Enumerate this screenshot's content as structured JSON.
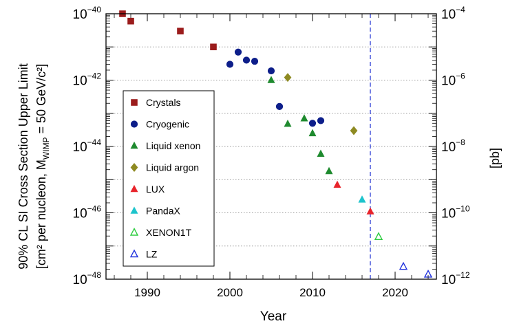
{
  "chart_data": {
    "type": "scatter",
    "xlabel": "Year",
    "ylabel_line1": "90% CL SI Cross Section Upper Limit",
    "ylabel_line2": "[cm² per nucleon, M",
    "ylabel_sub": "WIMP",
    "ylabel_line2_end": " = 50 GeV/c²]",
    "y2label": "[pb]",
    "xlim": [
      1985,
      2025
    ],
    "ylim": [
      1e-48,
      1e-40
    ],
    "y2lim": [
      1e-12,
      0.0001
    ],
    "log_y": true,
    "x_ticks": [
      1990,
      2000,
      2010,
      2020
    ],
    "y_ticks_left": [
      {
        "value": 1e-40,
        "mant": "10",
        "exp": "−40"
      },
      {
        "value": 1e-42,
        "mant": "10",
        "exp": "−42"
      },
      {
        "value": 1e-44,
        "mant": "10",
        "exp": "−44"
      },
      {
        "value": 1e-46,
        "mant": "10",
        "exp": "−46"
      },
      {
        "value": 1e-48,
        "mant": "10",
        "exp": "−48"
      }
    ],
    "y_ticks_right": [
      {
        "value": 1e-40,
        "mant": "10",
        "exp": "−4"
      },
      {
        "value": 1e-42,
        "mant": "10",
        "exp": "−6"
      },
      {
        "value": 1e-44,
        "mant": "10",
        "exp": "−8"
      },
      {
        "value": 1e-46,
        "mant": "10",
        "exp": "−10"
      },
      {
        "value": 1e-48,
        "mant": "10",
        "exp": "−12"
      }
    ],
    "vline_x": 2017,
    "grid": "horizontal dotted at each decade",
    "legend_position": "left-center",
    "series": [
      {
        "name": "Crystals",
        "marker": "square",
        "filled": true,
        "color": "#9b1c1c",
        "points": [
          [
            1987,
            1e-40
          ],
          [
            1988,
            6e-41
          ],
          [
            1994,
            3e-41
          ],
          [
            1998,
            1e-41
          ]
        ]
      },
      {
        "name": "Cryogenic",
        "marker": "circle",
        "filled": true,
        "color": "#0d1e8a",
        "points": [
          [
            2000,
            3e-42
          ],
          [
            2001,
            7e-42
          ],
          [
            2002,
            4e-42
          ],
          [
            2003,
            3.7e-42
          ],
          [
            2005,
            1.9e-42
          ],
          [
            2006,
            1.6e-43
          ],
          [
            2010,
            5e-44
          ],
          [
            2011,
            6e-44
          ]
        ]
      },
      {
        "name": "Liquid xenon",
        "marker": "triangle",
        "filled": true,
        "color": "#1e8a2e",
        "points": [
          [
            2005,
            1e-42
          ],
          [
            2007,
            4.8e-44
          ],
          [
            2009,
            7e-44
          ],
          [
            2010,
            2.5e-44
          ],
          [
            2011,
            6e-45
          ],
          [
            2012,
            1.8e-45
          ]
        ]
      },
      {
        "name": "Liquid argon",
        "marker": "diamond",
        "filled": true,
        "color": "#8e8a22",
        "points": [
          [
            2007,
            1.2e-42
          ],
          [
            2015,
            3e-44
          ]
        ]
      },
      {
        "name": "LUX",
        "marker": "triangle",
        "filled": true,
        "color": "#e8242b",
        "points": [
          [
            2013,
            7e-46
          ],
          [
            2017,
            1.1e-46
          ]
        ]
      },
      {
        "name": "PandaX",
        "marker": "triangle",
        "filled": true,
        "color": "#1ec4cc",
        "points": [
          [
            2016,
            2.5e-46
          ]
        ]
      },
      {
        "name": "XENON1T",
        "marker": "triangle",
        "filled": false,
        "color": "#2ecc40",
        "points": [
          [
            2018,
            1.9e-47
          ]
        ]
      },
      {
        "name": "LZ",
        "marker": "triangle",
        "filled": false,
        "color": "#2233dd",
        "points": [
          [
            2021,
            2.4e-48
          ],
          [
            2024,
            1.4e-48
          ]
        ]
      }
    ]
  }
}
